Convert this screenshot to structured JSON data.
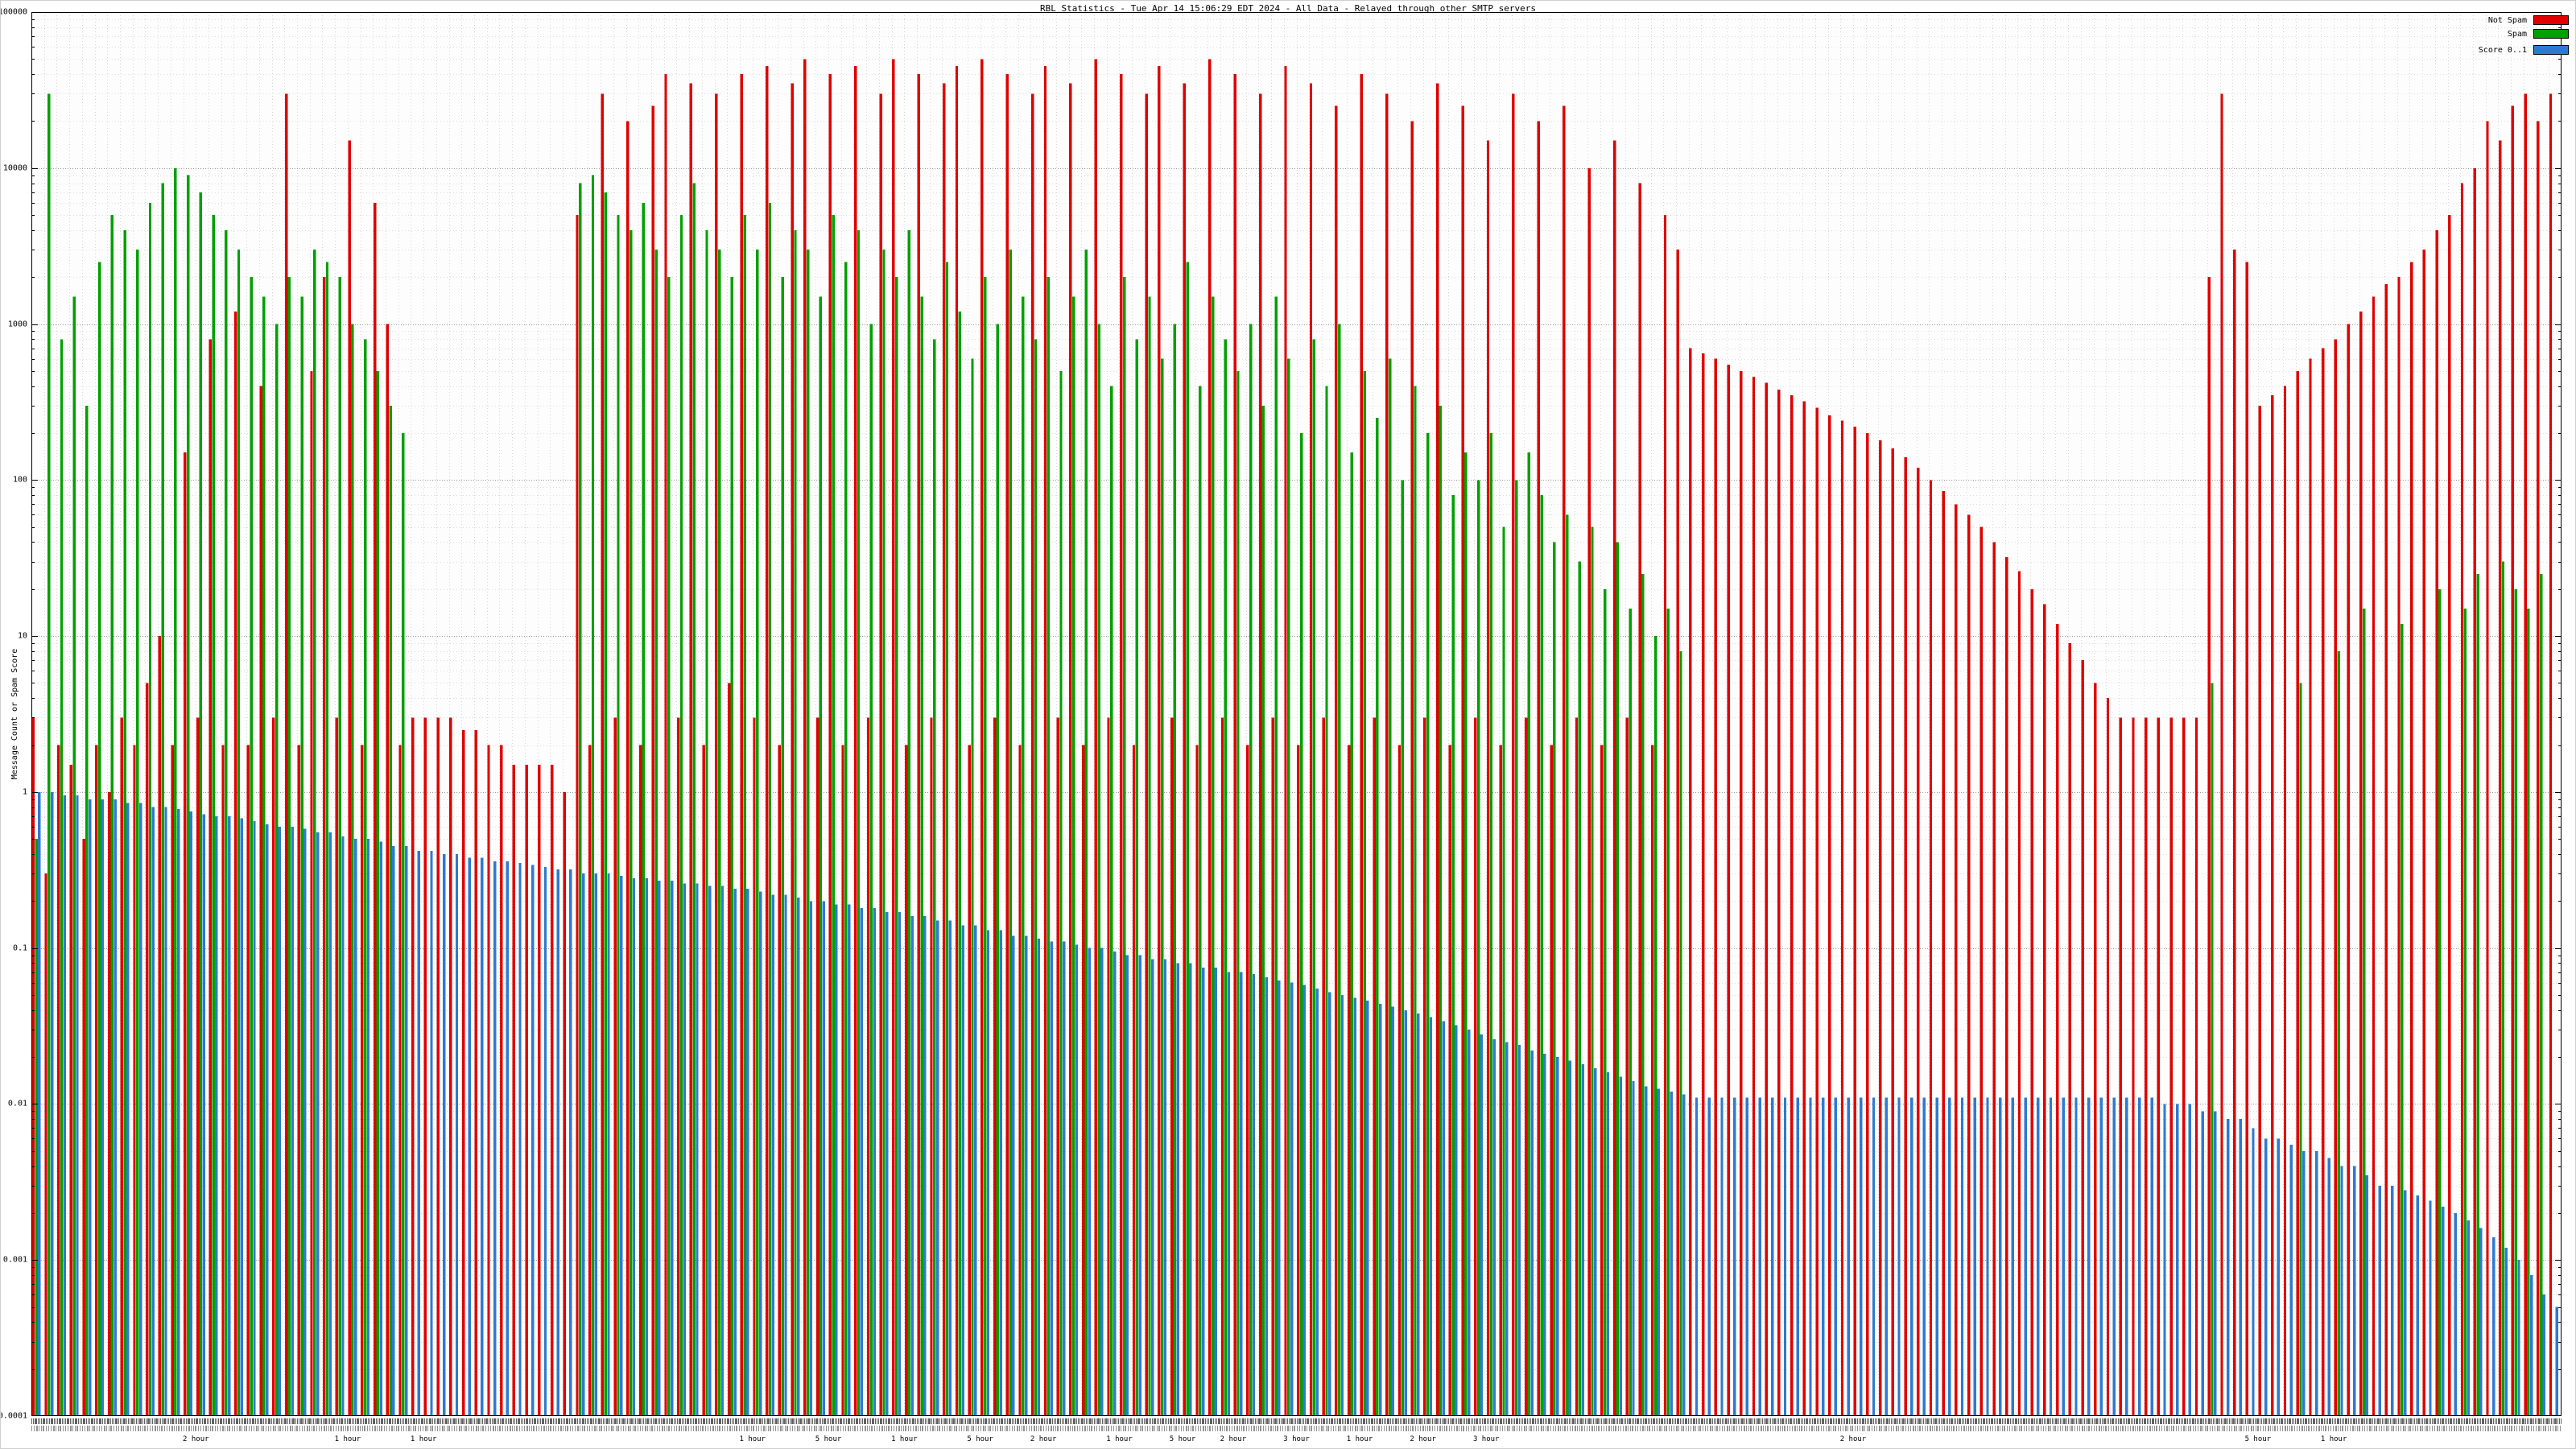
{
  "title": "RBL Statistics - Tue Apr 14 15:06:29 EDT 2024 - All Data - Relayed through other SMTP servers",
  "y_axis": {
    "label": "Message Count or Spam Score",
    "tick_labels": [
      "100000",
      "10000",
      "1000",
      "100",
      "10",
      "1",
      "0.1",
      "0.01",
      "0.001",
      "0.0001"
    ],
    "tick_values": [
      100000,
      10000,
      1000,
      100,
      10,
      1,
      0.1,
      0.01,
      0.001,
      0.0001
    ]
  },
  "legend": {
    "items": [
      {
        "label": "Not Spam",
        "color": "#e00000"
      },
      {
        "label": "Spam",
        "color": "#00a000"
      },
      {
        "label": "Score 0..1",
        "color": "#2e79d1"
      }
    ]
  },
  "x_axis": {
    "annotations": [
      {
        "pos": 0.065,
        "label": "2 hour"
      },
      {
        "pos": 0.125,
        "label": "1 hour"
      },
      {
        "pos": 0.155,
        "label": "1 hour"
      },
      {
        "pos": 0.285,
        "label": "1 hour"
      },
      {
        "pos": 0.315,
        "label": "5 hour"
      },
      {
        "pos": 0.345,
        "label": "1 hour"
      },
      {
        "pos": 0.375,
        "label": "5 hour"
      },
      {
        "pos": 0.4,
        "label": "2 hour"
      },
      {
        "pos": 0.43,
        "label": "1 hour"
      },
      {
        "pos": 0.455,
        "label": "5 hour"
      },
      {
        "pos": 0.475,
        "label": "2 hour"
      },
      {
        "pos": 0.5,
        "label": "3 hour"
      },
      {
        "pos": 0.525,
        "label": "1 hour"
      },
      {
        "pos": 0.55,
        "label": "2 hour"
      },
      {
        "pos": 0.575,
        "label": "3 hour"
      },
      {
        "pos": 0.72,
        "label": "2 hour"
      },
      {
        "pos": 0.88,
        "label": "5 hour"
      },
      {
        "pos": 0.91,
        "label": "1 hour"
      }
    ]
  },
  "chart_data": {
    "type": "bar",
    "title": "RBL Statistics - Tue Apr 14 15:06:29 EDT 2024 - All Data - Relayed through other SMTP servers",
    "xlabel": "",
    "ylabel": "Message Count or Spam Score",
    "y_scale": "log10",
    "ylim": [
      0.0001,
      100000
    ],
    "grid": true,
    "legend_position": "top-right",
    "bar_groups": 200,
    "series": [
      {
        "name": "Not Spam",
        "color": "#e00000",
        "values": [
          3,
          0.3,
          2,
          1.5,
          0.5,
          2,
          1,
          3,
          2,
          5,
          10,
          2,
          150,
          3,
          800,
          2,
          1200,
          2,
          400,
          3,
          30000,
          2,
          500,
          2000,
          3,
          15000,
          2,
          6000,
          1000,
          2,
          3,
          3,
          3,
          3,
          2.5,
          2.5,
          2,
          2,
          1.5,
          1.5,
          1.5,
          1.5,
          1,
          5000,
          2,
          30000,
          3,
          20000,
          2,
          25000,
          40000,
          3,
          35000,
          2,
          30000,
          5,
          40000,
          3,
          45000,
          2,
          35000,
          50000,
          3,
          40000,
          2,
          45000,
          3,
          30000,
          50000,
          2,
          40000,
          3,
          35000,
          45000,
          2,
          50000,
          3,
          40000,
          2,
          30000,
          45000,
          3,
          35000,
          2,
          50000,
          3,
          40000,
          2,
          30000,
          45000,
          3,
          35000,
          2,
          50000,
          3,
          40000,
          2,
          30000,
          3,
          45000,
          2,
          35000,
          3,
          25000,
          2,
          40000,
          3,
          30000,
          2,
          20000,
          3,
          35000,
          2,
          25000,
          3,
          15000,
          2,
          30000,
          3,
          20000,
          2,
          25000,
          3,
          10000,
          2,
          15000,
          3,
          8000,
          2,
          5000,
          3000,
          700,
          650,
          600,
          550,
          500,
          460,
          420,
          380,
          350,
          320,
          290,
          260,
          240,
          220,
          200,
          180,
          160,
          140,
          120,
          100,
          85,
          70,
          60,
          50,
          40,
          32,
          26,
          20,
          16,
          12,
          9,
          7,
          5,
          4,
          3,
          3,
          3,
          3,
          3,
          3,
          3,
          2000,
          30000,
          3000,
          2500,
          300,
          350,
          400,
          500,
          600,
          700,
          800,
          1000,
          1200,
          1500,
          1800,
          2000,
          2500,
          3000,
          4000,
          5000,
          8000,
          10000,
          20000,
          15000,
          25000,
          30000,
          20000,
          30000
        ]
      },
      {
        "name": "Spam",
        "color": "#00a000",
        "values": [
          0.5,
          30000,
          800,
          1500,
          300,
          2500,
          5000,
          4000,
          3000,
          6000,
          8000,
          10000,
          9000,
          7000,
          5000,
          4000,
          3000,
          2000,
          1500,
          1000,
          2000,
          1500,
          3000,
          2500,
          2000,
          1000,
          800,
          500,
          300,
          200,
          0,
          0,
          0,
          0,
          0,
          0,
          0,
          0,
          0,
          0,
          0,
          0,
          0,
          8000,
          9000,
          7000,
          5000,
          4000,
          6000,
          3000,
          2000,
          5000,
          8000,
          4000,
          3000,
          2000,
          5000,
          3000,
          6000,
          2000,
          4000,
          3000,
          1500,
          5000,
          2500,
          4000,
          1000,
          3000,
          2000,
          4000,
          1500,
          800,
          2500,
          1200,
          600,
          2000,
          1000,
          3000,
          1500,
          800,
          2000,
          500,
          1500,
          3000,
          1000,
          400,
          2000,
          800,
          1500,
          600,
          1000,
          2500,
          400,
          1500,
          800,
          500,
          1000,
          300,
          1500,
          600,
          200,
          800,
          400,
          1000,
          150,
          500,
          250,
          600,
          100,
          400,
          200,
          300,
          80,
          150,
          100,
          200,
          50,
          100,
          150,
          80,
          40,
          60,
          30,
          50,
          20,
          40,
          15,
          25,
          10,
          15,
          8,
          0,
          0,
          0,
          0,
          0,
          0,
          0,
          0,
          0,
          0,
          0,
          0,
          0,
          0,
          0,
          0,
          0,
          0,
          0,
          0,
          0,
          0,
          0,
          0,
          0,
          0,
          0,
          0,
          0,
          0,
          0,
          0,
          0,
          0,
          0,
          0,
          0,
          0,
          0,
          0,
          0,
          5,
          0,
          0,
          0,
          0,
          0,
          0,
          5,
          0,
          0,
          8,
          0,
          15,
          0,
          0,
          12,
          0,
          0,
          20,
          0,
          15,
          25,
          0,
          30,
          20,
          15,
          25
        ]
      },
      {
        "name": "Score 0..1",
        "color": "#2e79d1",
        "values": [
          1,
          1,
          0.95,
          0.95,
          0.9,
          0.9,
          0.9,
          0.85,
          0.85,
          0.8,
          0.8,
          0.78,
          0.75,
          0.72,
          0.7,
          0.7,
          0.68,
          0.65,
          0.62,
          0.6,
          0.6,
          0.58,
          0.55,
          0.55,
          0.52,
          0.5,
          0.5,
          0.48,
          0.45,
          0.45,
          0.42,
          0.42,
          0.4,
          0.4,
          0.38,
          0.38,
          0.36,
          0.36,
          0.35,
          0.34,
          0.33,
          0.32,
          0.32,
          0.3,
          0.3,
          0.3,
          0.29,
          0.28,
          0.28,
          0.27,
          0.27,
          0.26,
          0.26,
          0.25,
          0.25,
          0.24,
          0.24,
          0.23,
          0.22,
          0.22,
          0.21,
          0.2,
          0.2,
          0.19,
          0.19,
          0.18,
          0.18,
          0.17,
          0.17,
          0.16,
          0.16,
          0.15,
          0.15,
          0.14,
          0.14,
          0.13,
          0.13,
          0.12,
          0.12,
          0.115,
          0.11,
          0.11,
          0.105,
          0.1,
          0.1,
          0.095,
          0.09,
          0.09,
          0.085,
          0.085,
          0.08,
          0.08,
          0.075,
          0.075,
          0.07,
          0.07,
          0.068,
          0.065,
          0.062,
          0.06,
          0.058,
          0.055,
          0.052,
          0.05,
          0.048,
          0.046,
          0.044,
          0.042,
          0.04,
          0.038,
          0.036,
          0.034,
          0.032,
          0.03,
          0.028,
          0.026,
          0.025,
          0.024,
          0.022,
          0.021,
          0.02,
          0.019,
          0.018,
          0.017,
          0.016,
          0.015,
          0.014,
          0.013,
          0.0125,
          0.012,
          0.0115,
          0.011,
          0.011,
          0.011,
          0.011,
          0.011,
          0.011,
          0.011,
          0.011,
          0.011,
          0.011,
          0.011,
          0.011,
          0.011,
          0.011,
          0.011,
          0.011,
          0.011,
          0.011,
          0.011,
          0.011,
          0.011,
          0.011,
          0.011,
          0.011,
          0.011,
          0.011,
          0.011,
          0.011,
          0.011,
          0.011,
          0.011,
          0.011,
          0.011,
          0.011,
          0.011,
          0.011,
          0.011,
          0.01,
          0.01,
          0.01,
          0.009,
          0.009,
          0.008,
          0.008,
          0.007,
          0.006,
          0.006,
          0.0055,
          0.005,
          0.005,
          0.0045,
          0.004,
          0.004,
          0.0035,
          0.003,
          0.003,
          0.0028,
          0.0026,
          0.0024,
          0.0022,
          0.002,
          0.0018,
          0.0016,
          0.0014,
          0.0012,
          0.001,
          0.0008,
          0.0006,
          0.0005
        ]
      }
    ]
  }
}
